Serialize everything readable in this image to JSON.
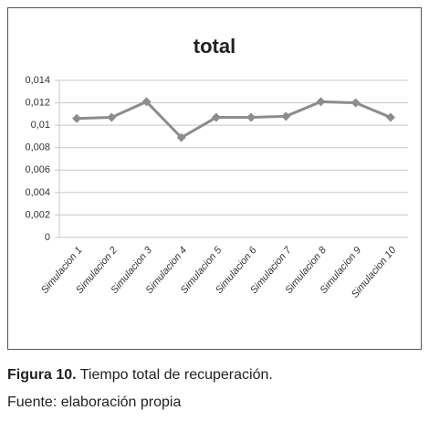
{
  "chart_data": {
    "type": "line",
    "title": "total",
    "categories": [
      "Simulacion 1",
      "Simulacion 2",
      "Simulacion 3",
      "Simulacion 4",
      "Simulacion 5",
      "Simulacion 6",
      "Simulacion 7",
      "Simulacion 8",
      "Simulacion 9",
      "Simulacion 10"
    ],
    "values": [
      0.0106,
      0.0107,
      0.0121,
      0.0089,
      0.0107,
      0.0107,
      0.0108,
      0.0121,
      0.012,
      0.0107
    ],
    "color": "#8c8c8c",
    "ylim": [
      0,
      0.014
    ],
    "yticks": [
      0,
      {
        "value": 0.002,
        "label": "0,002"
      },
      {
        "value": 0.004,
        "label": "0,004"
      },
      {
        "value": 0.006,
        "label": "0,006"
      },
      {
        "value": 0.008,
        "label": "0,008"
      },
      {
        "value": 0.01,
        "label": "0,01"
      },
      {
        "value": 0.012,
        "label": "0,012"
      },
      {
        "value": 0.014,
        "label": "0,014"
      }
    ],
    "grid": true
  },
  "caption": {
    "label": "Figura 10.",
    "text": "Tiempo total de recuperación."
  },
  "source": "Fuente: elaboración propia"
}
